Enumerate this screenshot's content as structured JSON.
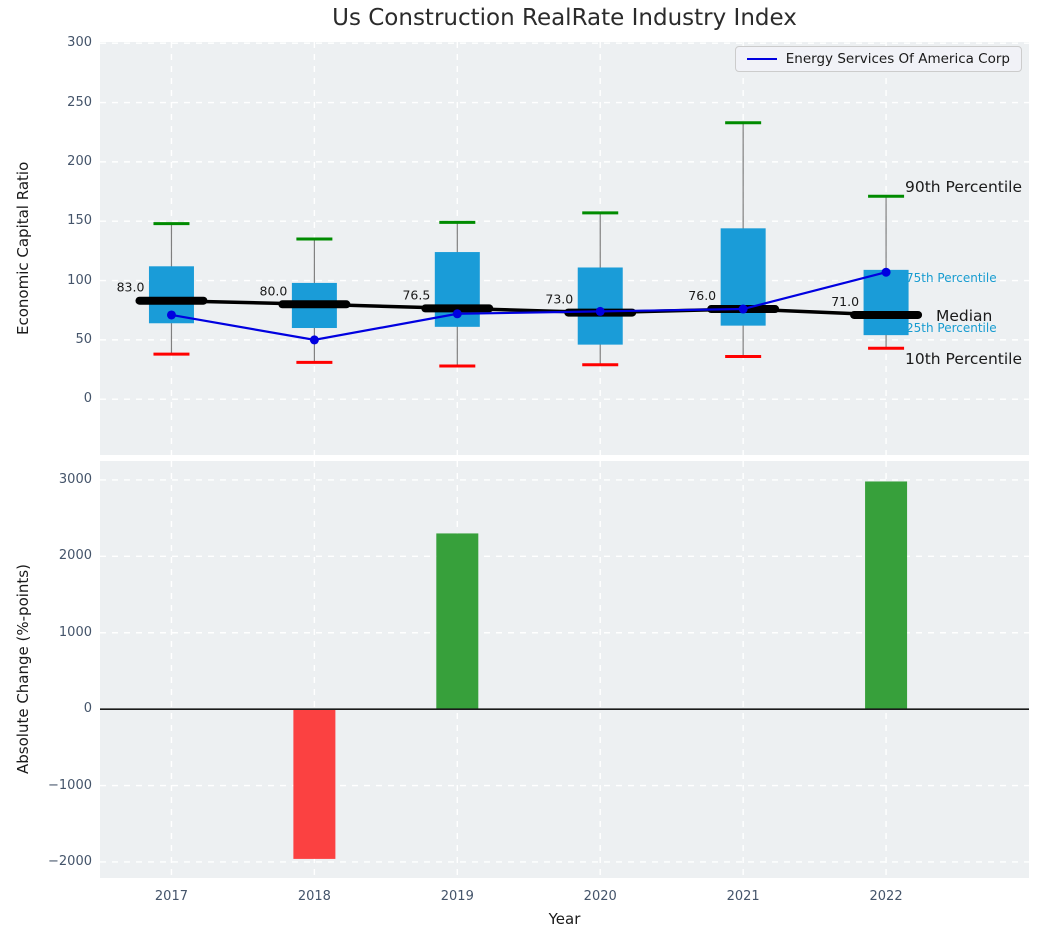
{
  "title": "Us Construction RealRate Industry Index",
  "legend": {
    "label": "Energy Services Of America Corp"
  },
  "colors": {
    "panel_bg": "#edf0f2",
    "grid": "#ffffff",
    "tick_label": "#44546a",
    "title": "#2b2b2b",
    "text": "#1a1a1a",
    "box_fill": "#1a9cd8",
    "whisker": "#7f7f7f",
    "p90_cap": "#008b00",
    "p10_cap": "#ff0000",
    "median": "#000000",
    "company_line": "#0000e0",
    "bar_positive": "#37a03b",
    "bar_negative": "#fb4141",
    "annotation_small": "#189cd0",
    "zero_line": "#1a1a1a"
  },
  "chart_data": [
    {
      "type": "boxplot",
      "ylabel": "Economic Capital Ratio",
      "categories": [
        "2017",
        "2018",
        "2019",
        "2020",
        "2021",
        "2022"
      ],
      "ylim": [
        -47,
        301
      ],
      "yticks": [
        0,
        50,
        100,
        150,
        200,
        250,
        300
      ],
      "grid": true,
      "legend_position": "upper right",
      "percentiles": [
        {
          "year": "2017",
          "p10": 38,
          "p25": 64,
          "median": 83.0,
          "p75": 112,
          "p90": 148
        },
        {
          "year": "2018",
          "p10": 31,
          "p25": 60,
          "median": 80.0,
          "p75": 98,
          "p90": 135
        },
        {
          "year": "2019",
          "p10": 28,
          "p25": 61,
          "median": 76.5,
          "p75": 124,
          "p90": 149
        },
        {
          "year": "2020",
          "p10": 29,
          "p25": 46,
          "median": 73.0,
          "p75": 111,
          "p90": 157
        },
        {
          "year": "2021",
          "p10": 36,
          "p25": 62,
          "median": 76.0,
          "p75": 144,
          "p90": 233
        },
        {
          "year": "2022",
          "p10": 43,
          "p25": 54,
          "median": 71.0,
          "p75": 109,
          "p90": 171
        }
      ],
      "median_labels": [
        "83.0",
        "80.0",
        "76.5",
        "73.0",
        "76.0",
        "71.0"
      ],
      "series": [
        {
          "name": "Energy Services Of America Corp",
          "values": [
            71,
            50,
            72,
            74,
            76,
            107
          ]
        }
      ],
      "annotations": [
        {
          "label": "90th Percentile",
          "v": 179,
          "x": 805,
          "style": "large"
        },
        {
          "label": "75th Percentile",
          "v": 102,
          "x": 806,
          "style": "small"
        },
        {
          "label": "Median",
          "v": 70.5,
          "x": 836,
          "style": "large"
        },
        {
          "label": "25th Percentile",
          "v": 60,
          "x": 806,
          "style": "small"
        },
        {
          "label": "10th Percentile",
          "v": 34,
          "x": 805,
          "style": "large"
        }
      ]
    },
    {
      "type": "bar",
      "xlabel": "Year",
      "ylabel": "Absolute Change (%-points)",
      "categories": [
        "2017",
        "2018",
        "2019",
        "2020",
        "2021",
        "2022"
      ],
      "values": [
        0,
        -1960,
        2300,
        0,
        0,
        2980
      ],
      "ylim": [
        -2210,
        3248
      ],
      "yticks": [
        -2000,
        -1000,
        0,
        1000,
        2000,
        3000
      ],
      "ytick_labels": [
        "−2000",
        "−1000",
        "0",
        "1000",
        "2000",
        "3000"
      ],
      "grid": true
    }
  ]
}
